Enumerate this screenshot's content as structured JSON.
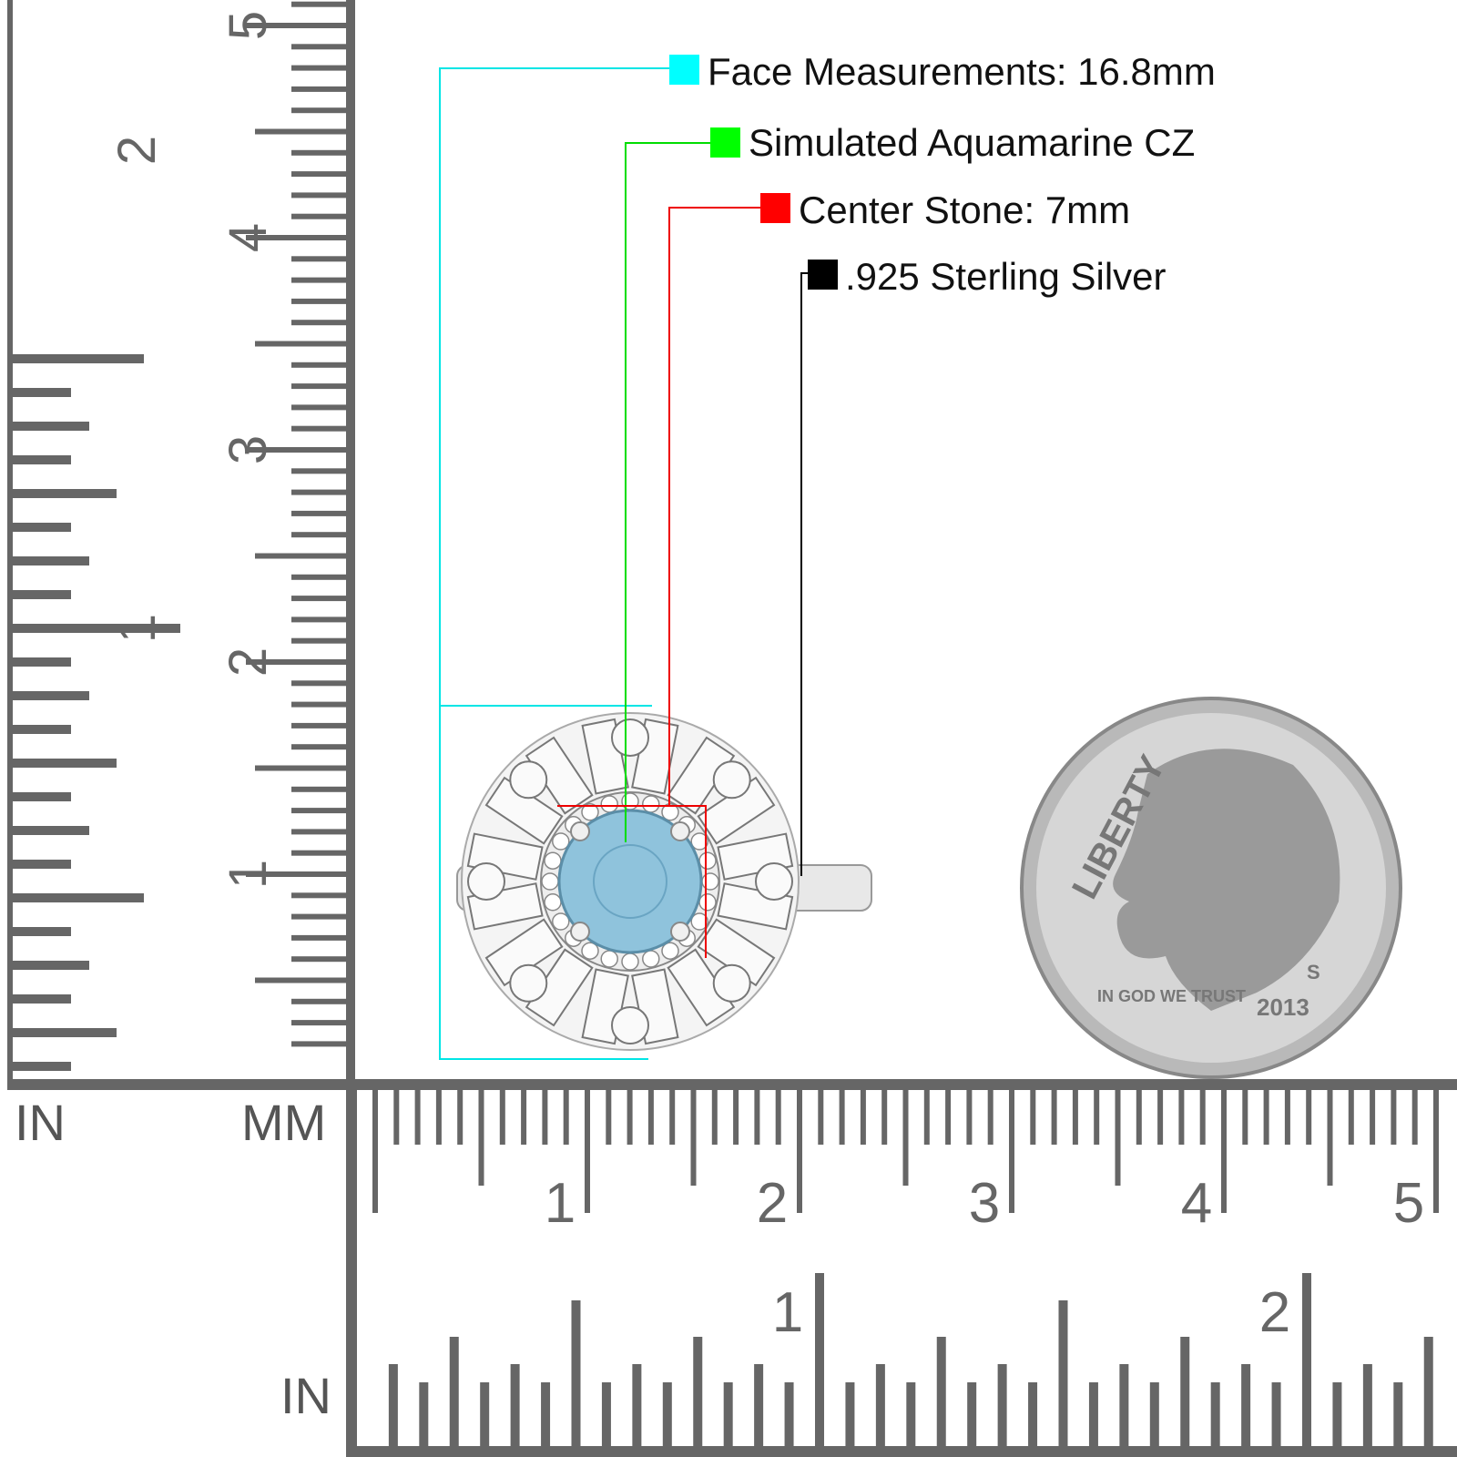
{
  "callouts": [
    {
      "label": "Face Measurements: 16.8mm",
      "color": "#00ffff"
    },
    {
      "label": "Simulated Aquamarine CZ",
      "color": "#00ff00"
    },
    {
      "label": "Center Stone: 7mm",
      "color": "#ff0000"
    },
    {
      "label": ".925 Sterling Silver",
      "color": "#000000"
    }
  ],
  "ruler_labels": {
    "vertical_in": "IN",
    "vertical_mm": "MM",
    "horizontal_in": "IN"
  },
  "vertical_ruler": {
    "cm_numbers": [
      "1",
      "2",
      "3",
      "4",
      "5"
    ],
    "inch_numbers": [
      "1",
      "2"
    ]
  },
  "horizontal_ruler": {
    "cm_numbers": [
      "1",
      "2",
      "3",
      "4",
      "5"
    ],
    "inch_numbers": [
      "1",
      "2"
    ]
  },
  "coin": {
    "liberty": "LIBERTY",
    "motto": "IN GOD WE TRUST",
    "year": "2013",
    "mint_mark": "S"
  },
  "colors": {
    "ruler_ink": "#666666",
    "stone": "#8fc3dc",
    "metal": "#e8e8e8"
  }
}
